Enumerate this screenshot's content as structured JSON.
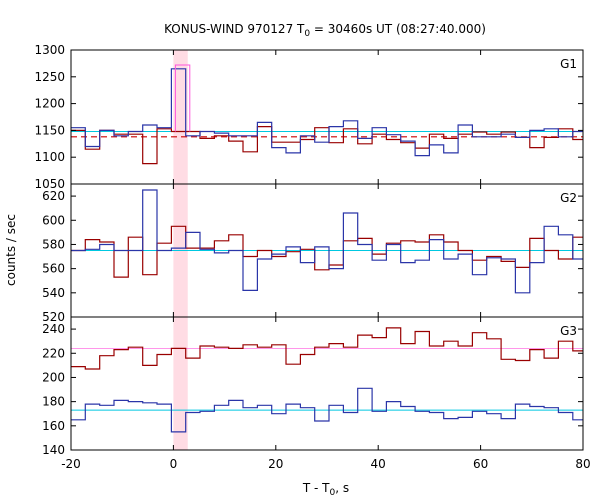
{
  "chart_data": {
    "type": "line",
    "title_main": "KONUS-WIND 970127 T",
    "title_sub": "0",
    "title_rest": " = 30460s UT (08:27:40.000)",
    "xlabel_main": "T - T",
    "xlabel_sub": "0",
    "xlabel_rest": ", s",
    "ylabel": "counts / sec",
    "xlim": [
      -20,
      80
    ],
    "x_ticks": [
      "-20",
      "0",
      "20",
      "40",
      "60",
      "80"
    ],
    "x_tick_values": [
      -20,
      0,
      20,
      40,
      60,
      80
    ],
    "highlight_band": [
      0,
      2.8
    ],
    "colors": {
      "red": "#990000",
      "blue": "#2a35a8",
      "bg_line": "#00c8e0",
      "pink": "#ff55dd",
      "band": "#ffd6df"
    },
    "bin_edges": [
      -20,
      -17.2,
      -14.4,
      -11.6,
      -8.8,
      -6,
      -3.2,
      -0.4,
      2.4,
      5.2,
      8,
      10.8,
      13.6,
      16.4,
      19.2,
      22,
      24.8,
      27.6,
      30.4,
      33.2,
      36,
      38.8,
      41.6,
      44.4,
      47.2,
      50,
      52.8,
      55.6,
      58.4,
      61.2,
      64,
      66.8,
      69.6,
      72.4,
      75.2,
      78,
      80
    ],
    "panels": [
      {
        "label": "G1",
        "ylim": [
          1050,
          1300
        ],
        "y_ticks": [
          "1050",
          "1100",
          "1150",
          "1200",
          "1250",
          "1300"
        ],
        "y_tick_values": [
          1050,
          1100,
          1150,
          1200,
          1250,
          1300
        ],
        "bg_level": 1148,
        "fit_level": 1138,
        "series": [
          {
            "name": "red",
            "values": [
              1150,
              1115,
              1150,
              1143,
              1143,
              1088,
              1153,
              1148,
              1148,
              1135,
              1140,
              1130,
              1110,
              1157,
              1128,
              1128,
              1133,
              1155,
              1127,
              1153,
              1125,
              1143,
              1133,
              1127,
              1117,
              1143,
              1135,
              1143,
              1147,
              1143,
              1147,
              1137,
              1118,
              1137,
              1153,
              1133
            ]
          },
          {
            "name": "blue",
            "values": [
              1155,
              1120,
              1150,
              1140,
              1148,
              1160,
              1155,
              1265,
              1140,
              1148,
              1145,
              1140,
              1140,
              1165,
              1118,
              1108,
              1140,
              1128,
              1157,
              1168,
              1135,
              1155,
              1142,
              1130,
              1103,
              1123,
              1108,
              1160,
              1138,
              1138,
              1143,
              1137,
              1150,
              1153,
              1138,
              1148
            ]
          }
        ]
      },
      {
        "label": "G2",
        "ylim": [
          520,
          630
        ],
        "y_ticks": [
          "520",
          "540",
          "560",
          "580",
          "600",
          "620"
        ],
        "y_tick_values": [
          520,
          540,
          560,
          580,
          600,
          620
        ],
        "bg_level": 575,
        "fit_level": null,
        "series": [
          {
            "name": "red",
            "values": [
              575,
              584,
              582,
              553,
              586,
              555,
              581,
              595,
              577,
              577,
              583,
              588,
              570,
              575,
              570,
              574,
              576,
              559,
              563,
              583,
              585,
              572,
              581,
              583,
              582,
              588,
              582,
              575,
              567,
              570,
              566,
              561,
              585,
              575,
              568,
              586
            ]
          },
          {
            "name": "blue",
            "values": [
              575,
              576,
              580,
              575,
              575,
              625,
              575,
              577,
              590,
              576,
              573,
              575,
              542,
              568,
              572,
              578,
              565,
              578,
              560,
              606,
              580,
              567,
              580,
              565,
              567,
              584,
              568,
              572,
              555,
              569,
              568,
              540,
              565,
              595,
              588,
              568
            ]
          }
        ]
      },
      {
        "label": "G3",
        "ylim": [
          140,
          250
        ],
        "y_ticks": [
          "140",
          "160",
          "180",
          "200",
          "220",
          "240"
        ],
        "y_tick_values": [
          140,
          160,
          180,
          200,
          220,
          240
        ],
        "bg_level": 173,
        "fit_level": null,
        "pink_level": 224,
        "series": [
          {
            "name": "red",
            "values": [
              209,
              207,
              218,
              223,
              225,
              210,
              219,
              224,
              216,
              226,
              225,
              224,
              227,
              225,
              227,
              211,
              219,
              225,
              228,
              225,
              235,
              233,
              241,
              228,
              238,
              226,
              230,
              226,
              237,
              232,
              215,
              214,
              223,
              216,
              230,
              222
            ]
          },
          {
            "name": "blue",
            "values": [
              165,
              178,
              177,
              181,
              180,
              179,
              178,
              155,
              171,
              172,
              177,
              181,
              175,
              177,
              170,
              178,
              175,
              164,
              177,
              171,
              191,
              172,
              180,
              176,
              172,
              171,
              166,
              167,
              172,
              170,
              166,
              178,
              176,
              175,
              171,
              165
            ]
          }
        ]
      }
    ]
  }
}
